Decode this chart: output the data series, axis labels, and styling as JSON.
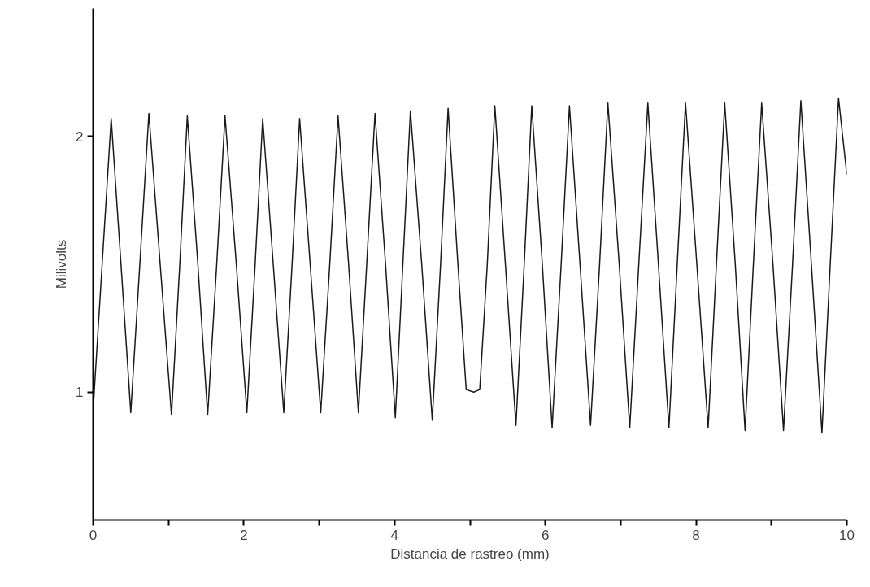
{
  "chart_data": {
    "type": "line",
    "xlabel": "Distancia de rastreo (mm)",
    "ylabel": "Milivolts",
    "xlim": [
      0,
      10
    ],
    "ylim": [
      0.5,
      2.5
    ],
    "xticks": [
      0,
      {
        "value": 1,
        "label": null
      },
      2,
      {
        "value": 3,
        "label": null
      },
      4,
      {
        "value": 5,
        "label": null
      },
      6,
      {
        "value": 7,
        "label": null
      },
      8,
      {
        "value": 9,
        "label": null
      },
      10
    ],
    "yticks": [
      1,
      2
    ],
    "grid": false,
    "marker": "none",
    "line_style": "solid",
    "series": [
      {
        "color": "#1a1a1a",
        "x": [
          0,
          0.12,
          0.24,
          0.37,
          0.5,
          0.62,
          0.74,
          0.89,
          1.04,
          1.15,
          1.25,
          1.39,
          1.52,
          1.64,
          1.75,
          1.9,
          2.04,
          2.15,
          2.25,
          2.39,
          2.53,
          2.64,
          2.74,
          2.88,
          3.02,
          3.14,
          3.25,
          3.39,
          3.52,
          3.63,
          3.74,
          3.88,
          4.01,
          4.11,
          4.21,
          4.36,
          4.5,
          4.61,
          4.71,
          4.84,
          4.95,
          5.05,
          5.13,
          5.23,
          5.33,
          5.47,
          5.61,
          5.72,
          5.82,
          5.96,
          6.09,
          6.21,
          6.32,
          6.46,
          6.6,
          6.72,
          6.83,
          6.98,
          7.12,
          7.24,
          7.36,
          7.5,
          7.64,
          7.75,
          7.86,
          8.01,
          8.16,
          8.27,
          8.38,
          8.52,
          8.65,
          8.76,
          8.87,
          9.02,
          9.16,
          9.28,
          9.39,
          9.53,
          9.67,
          9.78,
          9.89,
          10
        ],
        "values": [
          0.93,
          1.5,
          2.07,
          1.5,
          0.92,
          1.5,
          2.09,
          1.5,
          0.91,
          1.5,
          2.08,
          1.5,
          0.91,
          1.5,
          2.08,
          1.5,
          0.92,
          1.5,
          2.07,
          1.5,
          0.92,
          1.5,
          2.07,
          1.5,
          0.92,
          1.5,
          2.08,
          1.5,
          0.92,
          1.5,
          2.09,
          1.5,
          0.9,
          1.5,
          2.1,
          1.5,
          0.89,
          1.5,
          2.11,
          1.5,
          1.01,
          1.0,
          1.01,
          1.5,
          2.12,
          1.5,
          0.87,
          1.5,
          2.12,
          1.5,
          0.86,
          1.5,
          2.12,
          1.5,
          0.87,
          1.5,
          2.13,
          1.5,
          0.86,
          1.5,
          2.13,
          1.5,
          0.86,
          1.5,
          2.13,
          1.5,
          0.86,
          1.5,
          2.13,
          1.5,
          0.85,
          1.5,
          2.13,
          1.5,
          0.85,
          1.5,
          2.14,
          1.5,
          0.84,
          1.5,
          2.15,
          1.85
        ]
      }
    ]
  }
}
